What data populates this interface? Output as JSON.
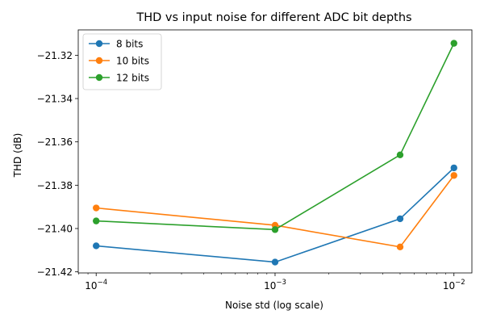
{
  "chart_data": {
    "type": "line",
    "title": "THD vs input noise for different ADC bit depths",
    "xlabel": "Noise std (log scale)",
    "ylabel": "THD (dB)",
    "x_scale": "log",
    "x": [
      0.0001,
      0.001,
      0.005,
      0.01
    ],
    "xlim": [
      7.94e-05,
      0.0126
    ],
    "ylim": [
      -21.4205,
      -21.3083
    ],
    "x_ticks": [
      {
        "value": 0.0001,
        "mantissa": "10",
        "exponent": "−4"
      },
      {
        "value": 0.001,
        "mantissa": "10",
        "exponent": "−3"
      },
      {
        "value": 0.01,
        "mantissa": "10",
        "exponent": "−2"
      }
    ],
    "y_ticks": [
      {
        "value": -21.42,
        "label": "−21.42"
      },
      {
        "value": -21.4,
        "label": "−21.40"
      },
      {
        "value": -21.38,
        "label": "−21.38"
      },
      {
        "value": -21.36,
        "label": "−21.36"
      },
      {
        "value": -21.34,
        "label": "−21.34"
      },
      {
        "value": -21.32,
        "label": "−21.32"
      }
    ],
    "grid": false,
    "legend_position": "top-left",
    "series": [
      {
        "name": "8 bits",
        "color": "#1f77b4",
        "values": [
          -21.408,
          -21.4155,
          -21.3955,
          -21.372
        ]
      },
      {
        "name": "10 bits",
        "color": "#ff7f0e",
        "values": [
          -21.3905,
          -21.3985,
          -21.4085,
          -21.3755
        ]
      },
      {
        "name": "12 bits",
        "color": "#2ca02c",
        "values": [
          -21.3965,
          -21.4005,
          -21.366,
          -21.3145
        ]
      }
    ]
  }
}
